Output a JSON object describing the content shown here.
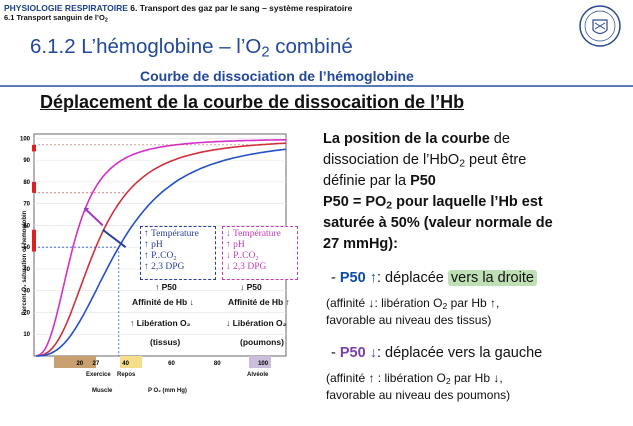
{
  "header": {
    "breadcrumb_blue": "PHYSIOLOGIE RESPIRATOIRE",
    "breadcrumb_rest": "6. Transport des gaz par le sang – système respiratoire",
    "subcrumb_pre": "6.1 Transport sanguin de l’O",
    "subcrumb_sub": "2"
  },
  "slide": {
    "title_pre": "6.1.2 L’hémoglobine – l’O",
    "title_sub": "2",
    "title_post": " combiné",
    "subtitle": "Courbe de dissociation de l’hémoglobine",
    "main_title": "Déplacement de la courbe de dissocaition de l’Hb"
  },
  "text": {
    "p1_bold": "La position de la courbe",
    "p1_rest": " de",
    "p2": "dissociation de l’HbO",
    "p2_sub": "2",
    "p2_rest": " peut être",
    "p3": "définie par la ",
    "p3_bold": "P50",
    "p4_a": "P50 = PO",
    "p4_sub": "2",
    "p4_b": " pour laquelle l’Hb est",
    "p5": "saturée à 50% (valeur normale de",
    "p6": "27 mmHg):",
    "right_dash": "- ",
    "right_p50": "P50 ↑",
    "right_text": ": déplacée ",
    "right_hl": "vers la droite",
    "right_note1_a": "(affinité ↓: libération O",
    "right_note1_sub": "2",
    "right_note1_b": " par Hb ↑,",
    "right_note2": "favorable au niveau des tissus)",
    "left_dash": "- ",
    "left_p50": "P50 ↓",
    "left_text": ": déplacée vers la gauche",
    "left_note1_a": "(affinité ↑ : libération O",
    "left_note1_sub": "2",
    "left_note1_b": " par Hb ↓,",
    "left_note2": "favorable au niveau des poumons)"
  },
  "graph": {
    "ylabel": "Percent O₂ saturation of hemoglobin",
    "xlabel": "P O₂ (mm Hg)",
    "yticks": [
      "100",
      "90",
      "80",
      "70",
      "60",
      "50",
      "40",
      "30",
      "20",
      "10"
    ],
    "xticks": [
      "20",
      "27",
      "40",
      "60",
      "80",
      "100"
    ],
    "xband_labels": [
      "Exercice",
      "Repos",
      "Muscle",
      "Alvéole"
    ],
    "box_right": [
      "↑ Température",
      "↑ pH",
      "↑ P..CO₂",
      "↑ 2,3 DPG"
    ],
    "box_left": [
      "↓ Température",
      "↑ pH",
      "↓ P..CO₂",
      "↓ 2,3 DPG"
    ],
    "p50_right": "↑ P50",
    "p50_left": "↓ P50",
    "aff_right_1": "Affinité de Hb ↓",
    "aff_right_2": "↑ Libération O₂",
    "aff_right_3": "(tissus)",
    "aff_left_1": "Affinité de Hb ↑",
    "aff_left_2": "↓ Libération O₂",
    "aff_left_3": "(poumons)",
    "colors": {
      "left": "#d62fc8",
      "normal": "#d0303a",
      "right": "#2450c8",
      "box": "#2b3e9a",
      "boxleft": "#c43bb7"
    }
  }
}
